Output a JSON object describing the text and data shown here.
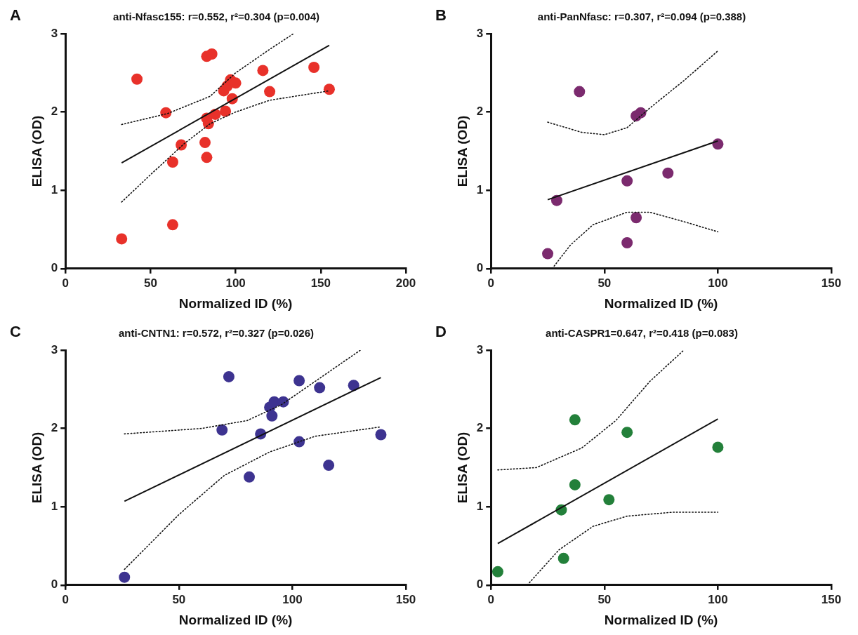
{
  "chart_data": [
    {
      "type": "scatter",
      "title": "anti-Nfasc155: r=0.552, r²=0.304 (p=0.004)",
      "annotations": [
        "A"
      ],
      "xlabel": "Normalized ID (%)",
      "ylabel": "ELISA (OD)",
      "xlim": [
        0,
        200
      ],
      "xticks": [
        0,
        50,
        100,
        150,
        200
      ],
      "ylim": [
        0,
        3
      ],
      "yticks": [
        0,
        1,
        2,
        3
      ],
      "grid": false,
      "legend": false,
      "marker": "circle",
      "series": [
        {
          "color": "#e8312a",
          "x": [
            33,
            42,
            59,
            63,
            63,
            68,
            82,
            83,
            83,
            84,
            83,
            86,
            88,
            93,
            94,
            95,
            97,
            98,
            100,
            116,
            120,
            146,
            155
          ],
          "values": [
            0.38,
            2.42,
            1.99,
            1.36,
            0.56,
            1.58,
            1.61,
            1.42,
            1.92,
            1.85,
            2.71,
            2.74,
            1.97,
            2.27,
            2.01,
            2.33,
            2.41,
            2.17,
            2.37,
            2.53,
            2.26,
            2.57,
            2.29
          ]
        },
        {
          "type": "line",
          "marker": "none",
          "color": "#111111",
          "line_style": "solid",
          "x": [
            33,
            155
          ],
          "values": [
            1.35,
            2.85
          ]
        },
        {
          "type": "line",
          "marker": "none",
          "color": "#111111",
          "line_style": "dotted",
          "x": [
            33,
            60,
            85,
            100,
            120,
            134
          ],
          "values": [
            1.84,
            1.98,
            2.2,
            2.5,
            2.8,
            3.0
          ]
        },
        {
          "type": "line",
          "marker": "none",
          "color": "#111111",
          "line_style": "dotted",
          "x": [
            33,
            50,
            70,
            85,
            100,
            120,
            155
          ],
          "values": [
            0.85,
            1.2,
            1.6,
            1.85,
            2.0,
            2.15,
            2.27
          ]
        }
      ]
    },
    {
      "type": "scatter",
      "title": "anti-PanNfasc: r=0.307, r²=0.094 (p=0.388)",
      "annotations": [
        "B"
      ],
      "xlabel": "Normalized ID (%)",
      "ylabel": "ELISA (OD)",
      "xlim": [
        0,
        150
      ],
      "xticks": [
        0,
        50,
        100,
        150
      ],
      "ylim": [
        0,
        3
      ],
      "yticks": [
        0,
        1,
        2,
        3
      ],
      "grid": false,
      "legend": false,
      "marker": "circle",
      "series": [
        {
          "color": "#7b2a6e",
          "x": [
            25,
            29,
            39,
            60,
            60,
            64,
            66,
            64,
            78,
            100
          ],
          "values": [
            0.19,
            0.87,
            2.26,
            0.33,
            1.12,
            1.95,
            1.99,
            0.65,
            1.22,
            1.59
          ]
        },
        {
          "type": "line",
          "marker": "none",
          "color": "#111111",
          "line_style": "solid",
          "x": [
            25,
            100
          ],
          "values": [
            0.88,
            1.63
          ]
        },
        {
          "type": "line",
          "marker": "none",
          "color": "#111111",
          "line_style": "dotted",
          "x": [
            25,
            40,
            50,
            60,
            70,
            85,
            100
          ],
          "values": [
            1.87,
            1.74,
            1.71,
            1.8,
            2.05,
            2.4,
            2.78
          ]
        },
        {
          "type": "line",
          "marker": "none",
          "color": "#111111",
          "line_style": "dotted",
          "x": [
            27,
            35,
            45,
            60,
            70,
            85,
            100
          ],
          "values": [
            0,
            0.3,
            0.56,
            0.72,
            0.72,
            0.6,
            0.47
          ]
        }
      ]
    },
    {
      "type": "scatter",
      "title": "anti-CNTN1: r=0.572, r²=0.327 (p=0.026)",
      "annotations": [
        "C"
      ],
      "xlabel": "Normalized ID (%)",
      "ylabel": "ELISA (OD)",
      "xlim": [
        0,
        150
      ],
      "xticks": [
        0,
        50,
        100,
        150
      ],
      "ylim": [
        0,
        3
      ],
      "yticks": [
        0,
        1,
        2,
        3
      ],
      "grid": false,
      "legend": false,
      "marker": "circle",
      "series": [
        {
          "color": "#3d3390",
          "x": [
            26,
            69,
            72,
            81,
            86,
            90,
            91,
            92,
            96,
            103,
            103,
            112,
            116,
            127,
            139
          ],
          "values": [
            0.1,
            1.98,
            2.66,
            1.38,
            1.93,
            2.27,
            2.16,
            2.34,
            2.34,
            2.61,
            1.83,
            2.52,
            1.53,
            2.55,
            1.92
          ]
        },
        {
          "type": "line",
          "marker": "none",
          "color": "#111111",
          "line_style": "solid",
          "x": [
            26,
            139
          ],
          "values": [
            1.07,
            2.65
          ]
        },
        {
          "type": "line",
          "marker": "none",
          "color": "#111111",
          "line_style": "dotted",
          "x": [
            26,
            60,
            80,
            95,
            110,
            130
          ],
          "values": [
            1.93,
            2.0,
            2.1,
            2.3,
            2.6,
            3.0
          ]
        },
        {
          "type": "line",
          "marker": "none",
          "color": "#111111",
          "line_style": "dotted",
          "x": [
            26,
            50,
            70,
            90,
            110,
            139
          ],
          "values": [
            0.2,
            0.9,
            1.4,
            1.7,
            1.9,
            2.02
          ]
        }
      ]
    },
    {
      "type": "scatter",
      "title": "anti-CASPR1=0.647, r²=0.418 (p=0.083)",
      "annotations": [
        "D"
      ],
      "xlabel": "Normalized ID (%)",
      "ylabel": "ELISA (OD)",
      "xlim": [
        0,
        150
      ],
      "xticks": [
        0,
        50,
        100,
        150
      ],
      "ylim": [
        0,
        3
      ],
      "yticks": [
        0,
        1,
        2,
        3
      ],
      "grid": false,
      "legend": false,
      "marker": "circle",
      "series": [
        {
          "color": "#23803a",
          "x": [
            3,
            31,
            32,
            37,
            37,
            52,
            60,
            100
          ],
          "values": [
            0.17,
            0.96,
            0.34,
            1.28,
            2.11,
            1.09,
            1.95,
            1.76
          ]
        },
        {
          "type": "line",
          "marker": "none",
          "color": "#111111",
          "line_style": "solid",
          "x": [
            3,
            100
          ],
          "values": [
            0.53,
            2.12
          ]
        },
        {
          "type": "line",
          "marker": "none",
          "color": "#111111",
          "line_style": "dotted",
          "x": [
            3,
            20,
            40,
            55,
            70,
            85
          ],
          "values": [
            1.47,
            1.5,
            1.75,
            2.1,
            2.6,
            3.0
          ]
        },
        {
          "type": "line",
          "marker": "none",
          "color": "#111111",
          "line_style": "dotted",
          "x": [
            16,
            30,
            45,
            60,
            80,
            100
          ],
          "values": [
            0,
            0.45,
            0.75,
            0.88,
            0.93,
            0.93
          ]
        }
      ]
    }
  ]
}
